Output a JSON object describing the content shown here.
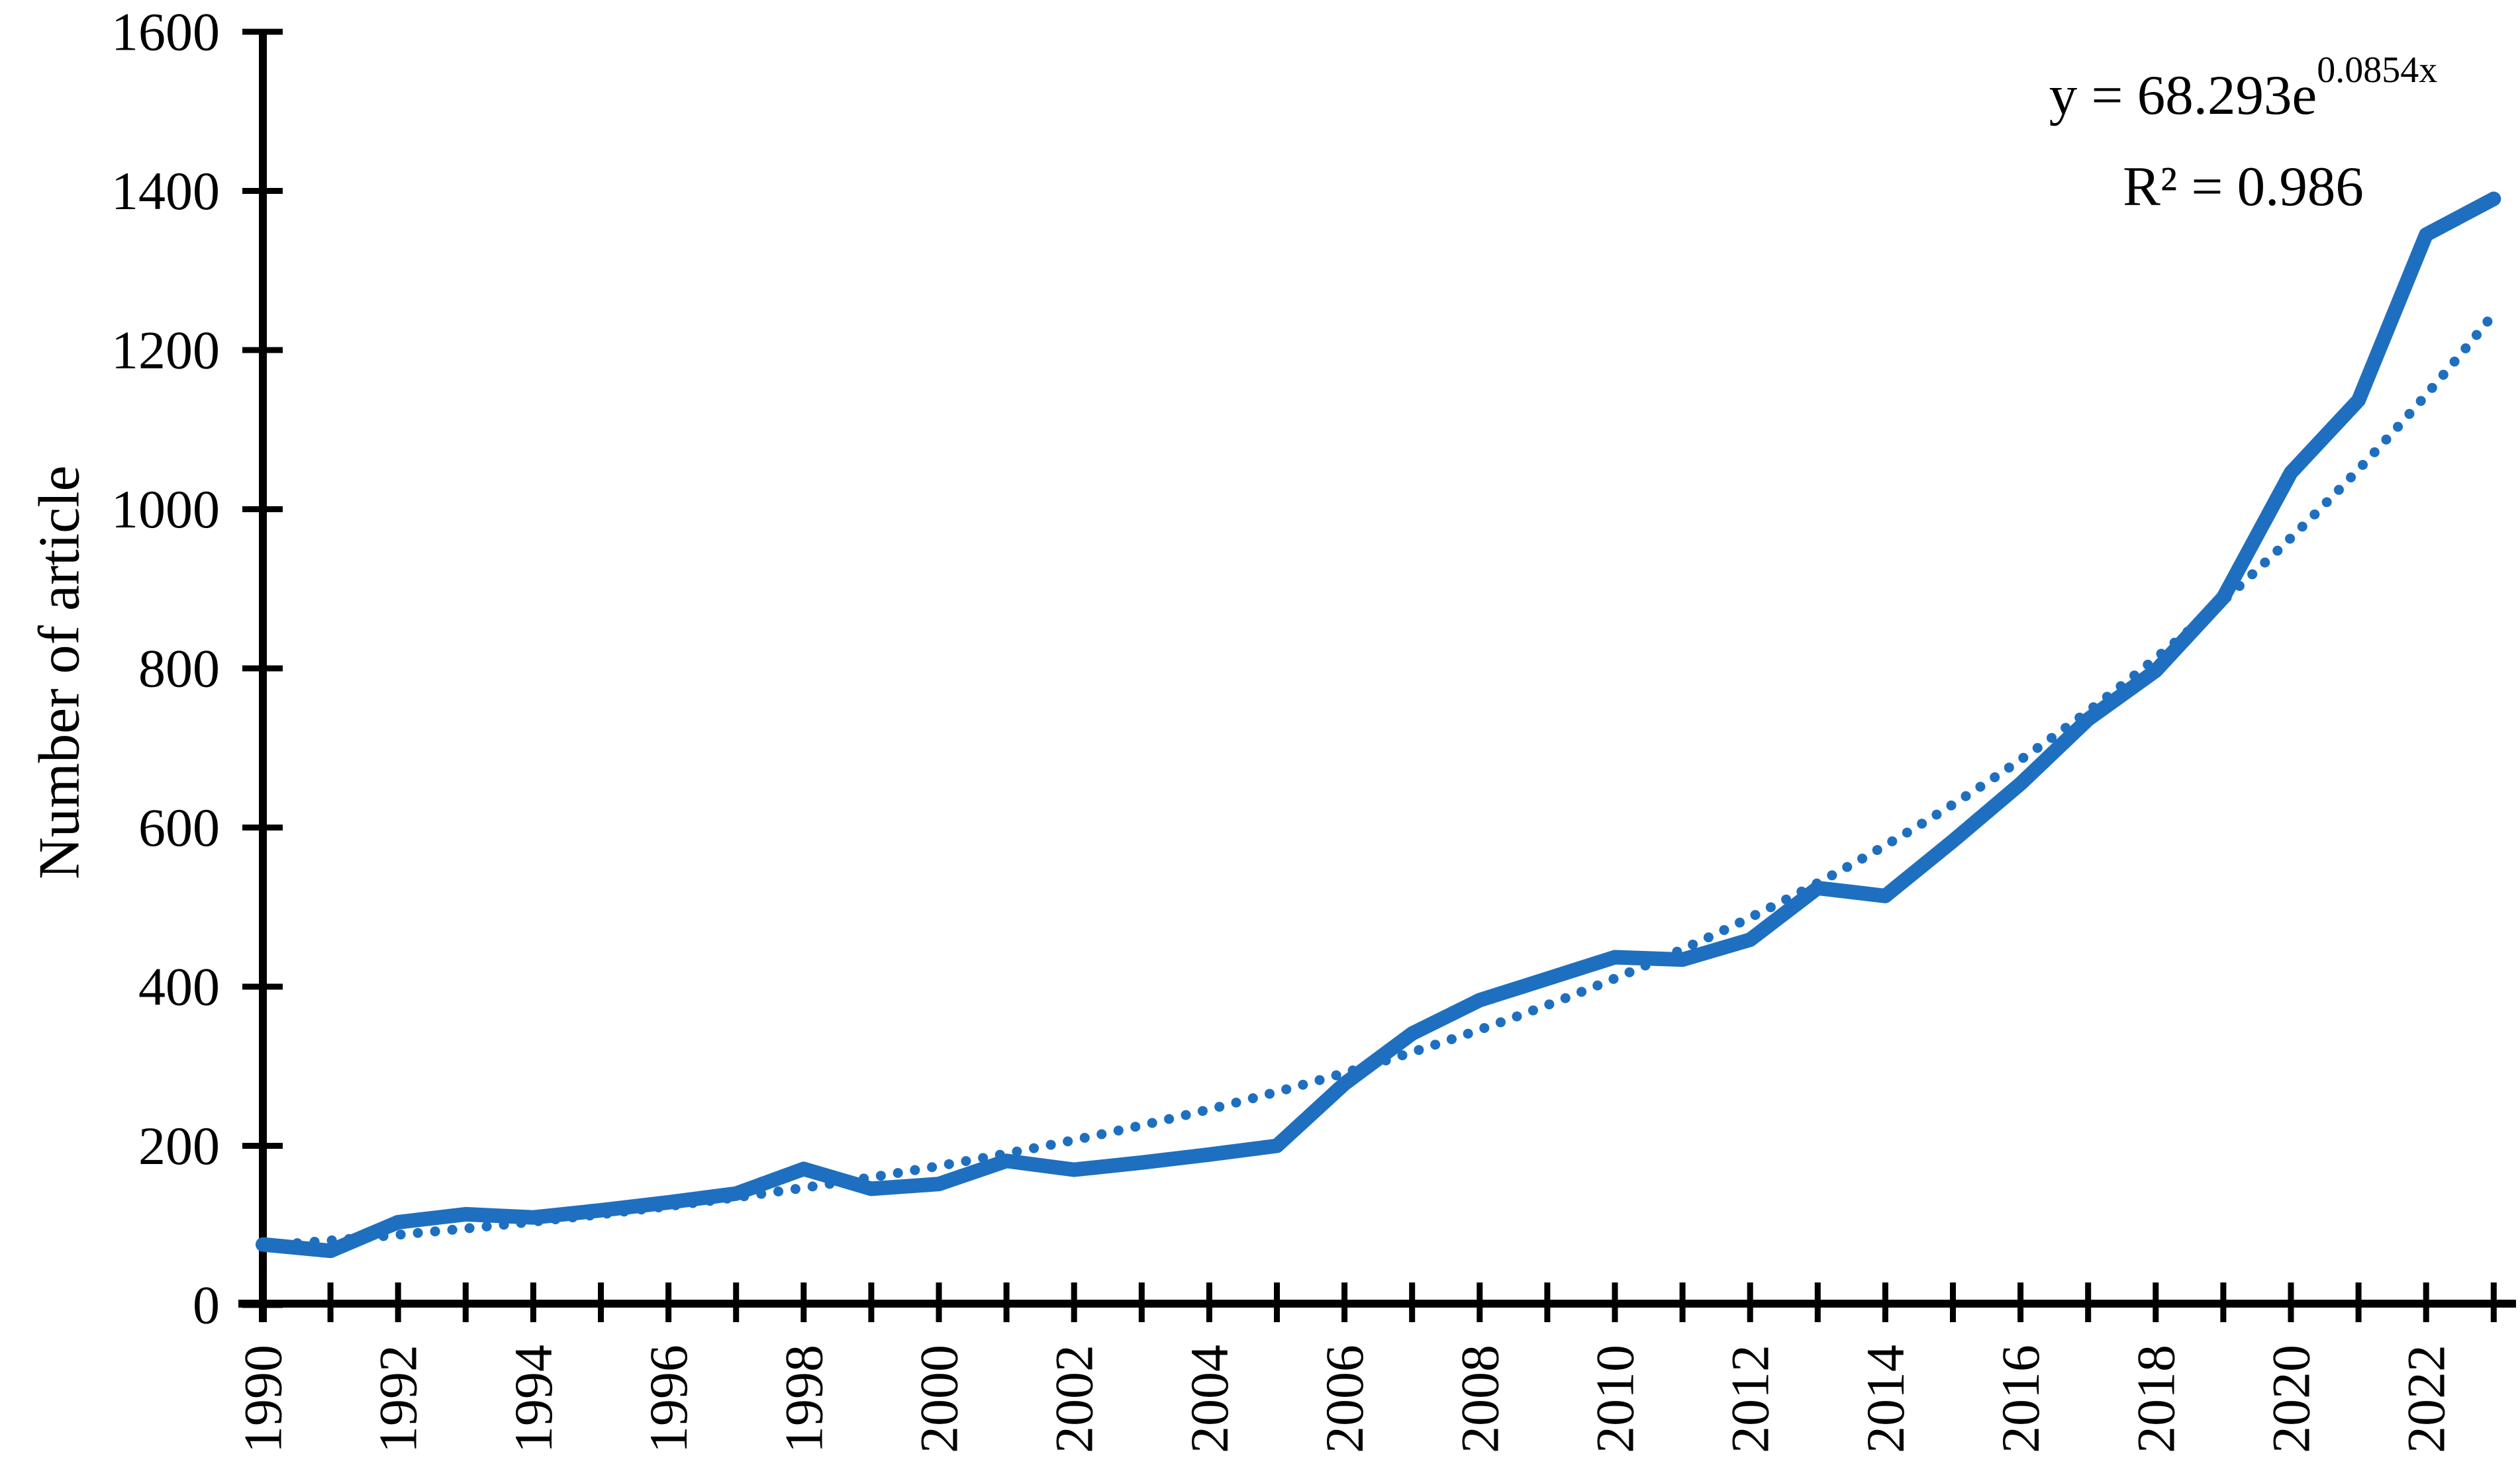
{
  "colors": {
    "series_blue": "#1e6fc0",
    "axis_black": "#000000",
    "background": "#ffffff"
  },
  "axis": {
    "y_title": "Number of article",
    "y_tick_labels": [
      "0",
      "200",
      "400",
      "600",
      "800",
      "1000",
      "1200",
      "1400",
      "1600"
    ],
    "x_tick_labels": [
      "1990",
      "1992",
      "1994",
      "1996",
      "1998",
      "2000",
      "2002",
      "2004",
      "2006",
      "2008",
      "2010",
      "2012",
      "2014",
      "2016",
      "2018",
      "2020",
      "2022"
    ]
  },
  "annotation": {
    "equation_base": "y = 68.293e",
    "equation_exponent": "0.0854x",
    "r_squared": "R² = 0.986"
  },
  "chart_data": {
    "type": "line",
    "title": "",
    "xlabel": "",
    "ylabel": "Number of article",
    "ylim": [
      0,
      1600
    ],
    "ytick_step": 200,
    "xtick_label_step": 2,
    "grid": false,
    "legend": "none",
    "x": [
      1990,
      1991,
      1992,
      1993,
      1994,
      1995,
      1996,
      1997,
      1998,
      1999,
      2000,
      2001,
      2002,
      2003,
      2004,
      2005,
      2006,
      2007,
      2008,
      2009,
      2010,
      2011,
      2012,
      2013,
      2014,
      2015,
      2016,
      2017,
      2018,
      2019,
      2020,
      2021,
      2022,
      2023
    ],
    "series": [
      {
        "name": "Number of article",
        "style": "solid",
        "values": [
          76,
          68,
          104,
          114,
          110,
          119,
          129,
          140,
          171,
          146,
          152,
          181,
          170,
          179,
          189,
          200,
          278,
          341,
          383,
          410,
          437,
          434,
          459,
          524,
          514,
          583,
          655,
          736,
          797,
          889,
          1046,
          1137,
          1345,
          1390
        ]
      },
      {
        "name": "Exponential trendline",
        "style": "dotted",
        "equation": "y = 68.293e^(0.0854x)",
        "r2": 0.986,
        "params": {
          "a": 68.293,
          "b": 0.0854,
          "x_index_origin": 1989
        }
      }
    ]
  }
}
